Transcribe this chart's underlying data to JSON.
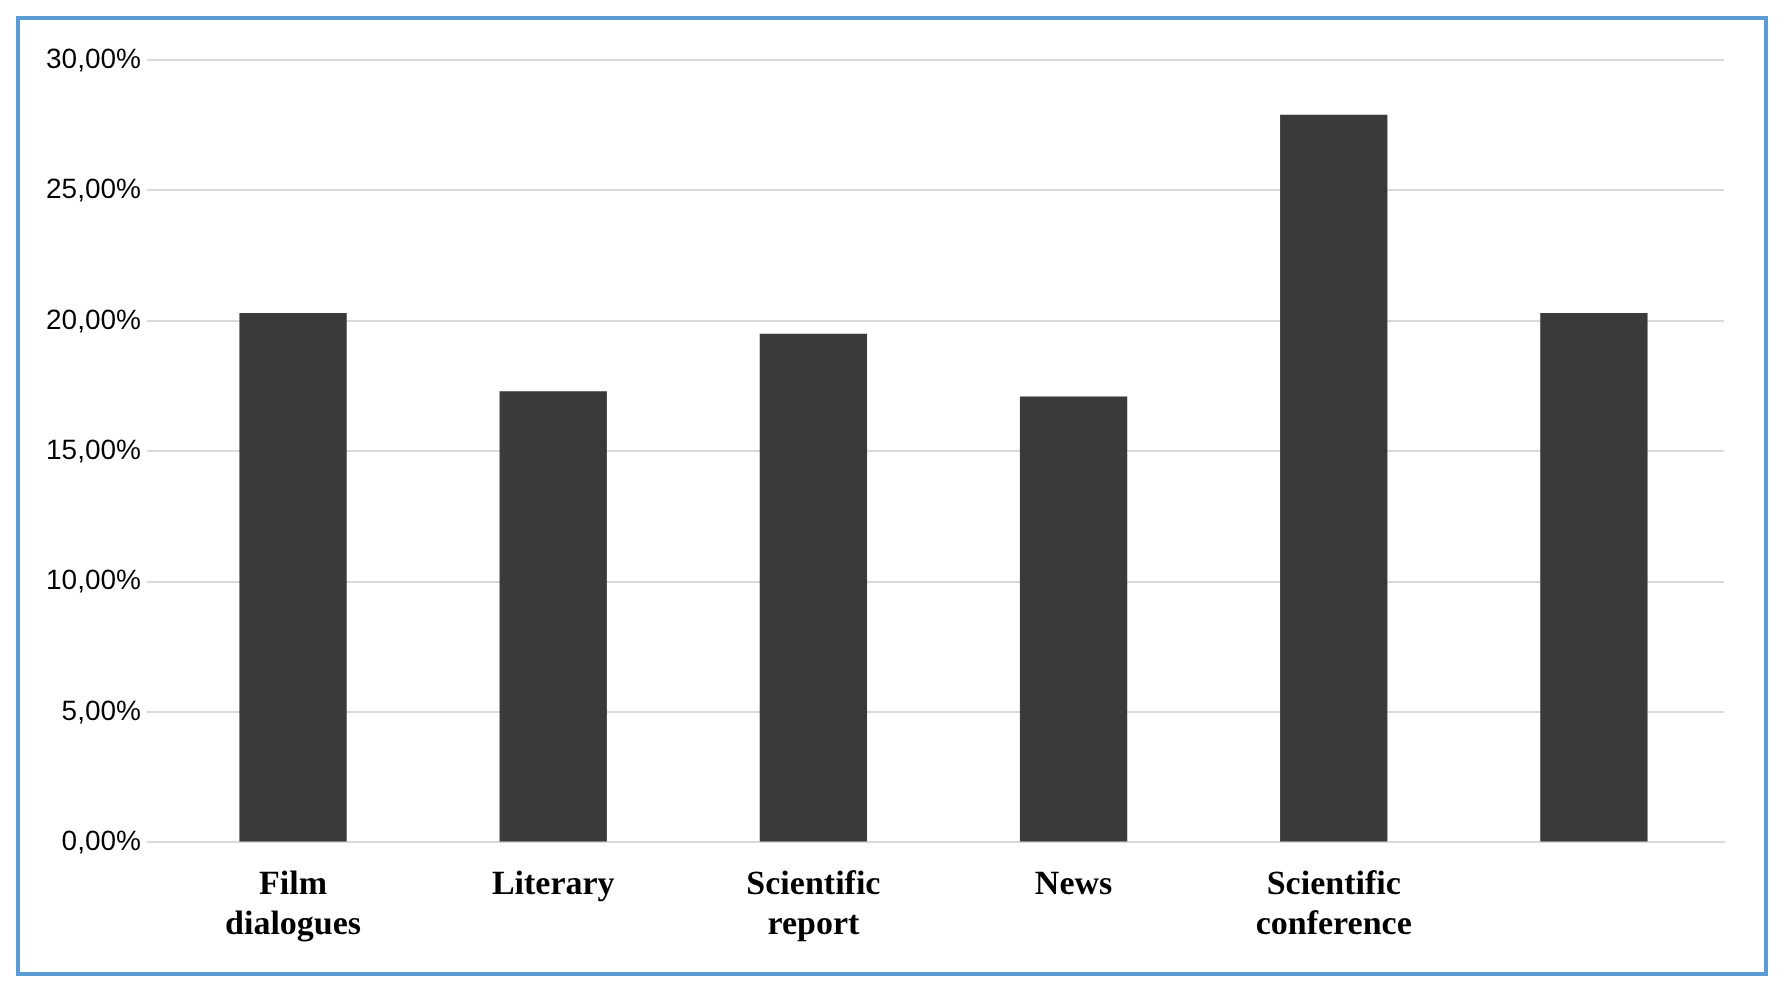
{
  "chart_data": {
    "type": "bar",
    "categories": [
      "Film dialogues",
      "Literary",
      "Scientific report",
      "News",
      "Scientific conference",
      null
    ],
    "values": [
      20.3,
      17.3,
      19.5,
      17.1,
      27.9,
      20.3
    ],
    "color": "#3a3a3a",
    "ylim": [
      0,
      30
    ],
    "yticks": [
      {
        "value": 0,
        "label": "0,00%"
      },
      {
        "value": 5,
        "label": "5,00%"
      },
      {
        "value": 10,
        "label": "10,00%"
      },
      {
        "value": 15,
        "label": "15,00%"
      },
      {
        "value": 20,
        "label": "20,00%"
      },
      {
        "value": 25,
        "label": "25,00%"
      },
      {
        "value": 30,
        "label": "30,00%"
      }
    ],
    "grid": "y",
    "legend": false
  }
}
